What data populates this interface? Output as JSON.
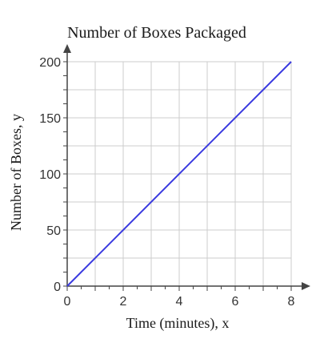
{
  "chart_data": {
    "type": "line",
    "title": "Number of Boxes Packaged",
    "xlabel": "Time (minutes), x",
    "ylabel": "Number of Boxes, y",
    "xlim": [
      0,
      8
    ],
    "ylim": [
      0,
      200
    ],
    "x_ticks": [
      "0",
      "2",
      "4",
      "6",
      "8"
    ],
    "y_ticks": [
      "0",
      "50",
      "100",
      "150",
      "200"
    ],
    "x_tick_values": [
      0,
      2,
      4,
      6,
      8
    ],
    "y_tick_values": [
      0,
      50,
      100,
      150,
      200
    ],
    "grid": true,
    "series": [
      {
        "x": [
          0,
          8
        ],
        "y": [
          0,
          200
        ]
      }
    ],
    "colors": {
      "line": "#3a3ae0",
      "grid": "#cccccc",
      "axis": "#444444"
    }
  }
}
